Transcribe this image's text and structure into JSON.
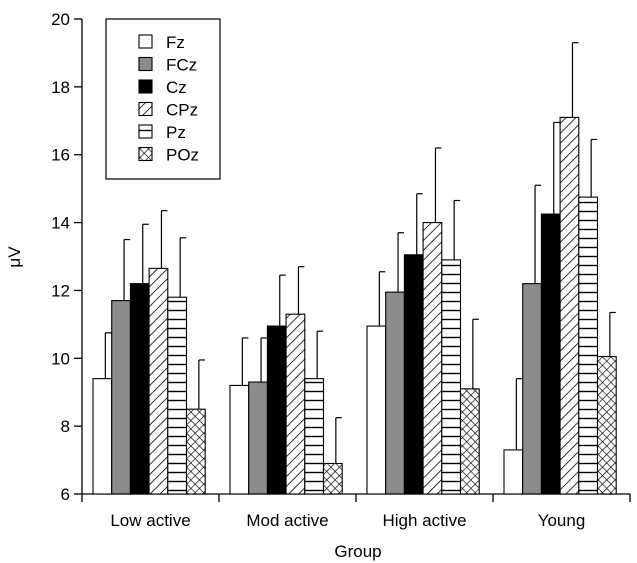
{
  "chart_data": {
    "type": "bar",
    "title": "",
    "xlabel": "Group",
    "ylabel": "μV",
    "ylim": [
      6,
      20
    ],
    "yticks": [
      6,
      8,
      10,
      12,
      14,
      16,
      18,
      20
    ],
    "grid": false,
    "legend_position": "top-left",
    "categories": [
      "Low active",
      "Mod active",
      "High active",
      "Young"
    ],
    "series": [
      {
        "name": "Fz",
        "fill": "white",
        "values": [
          9.4,
          9.2,
          10.95,
          7.3
        ],
        "errors": [
          1.35,
          1.4,
          1.6,
          2.1
        ]
      },
      {
        "name": "FCz",
        "fill": "gray",
        "values": [
          11.7,
          9.3,
          11.95,
          12.2
        ],
        "errors": [
          1.8,
          1.3,
          1.75,
          2.9
        ]
      },
      {
        "name": "Cz",
        "fill": "black",
        "values": [
          12.2,
          10.95,
          13.05,
          14.25
        ],
        "errors": [
          1.75,
          1.5,
          1.8,
          2.7
        ]
      },
      {
        "name": "CPz",
        "fill": "diagonal",
        "values": [
          12.65,
          11.3,
          14.0,
          17.1
        ],
        "errors": [
          1.7,
          1.4,
          2.2,
          2.2
        ]
      },
      {
        "name": "Pz",
        "fill": "horizontal",
        "values": [
          11.8,
          9.4,
          12.9,
          14.75
        ],
        "errors": [
          1.75,
          1.4,
          1.75,
          1.7
        ]
      },
      {
        "name": "POz",
        "fill": "crosshatch",
        "values": [
          8.5,
          6.9,
          9.1,
          10.05
        ],
        "errors": [
          1.45,
          1.35,
          2.05,
          1.3
        ]
      }
    ]
  }
}
